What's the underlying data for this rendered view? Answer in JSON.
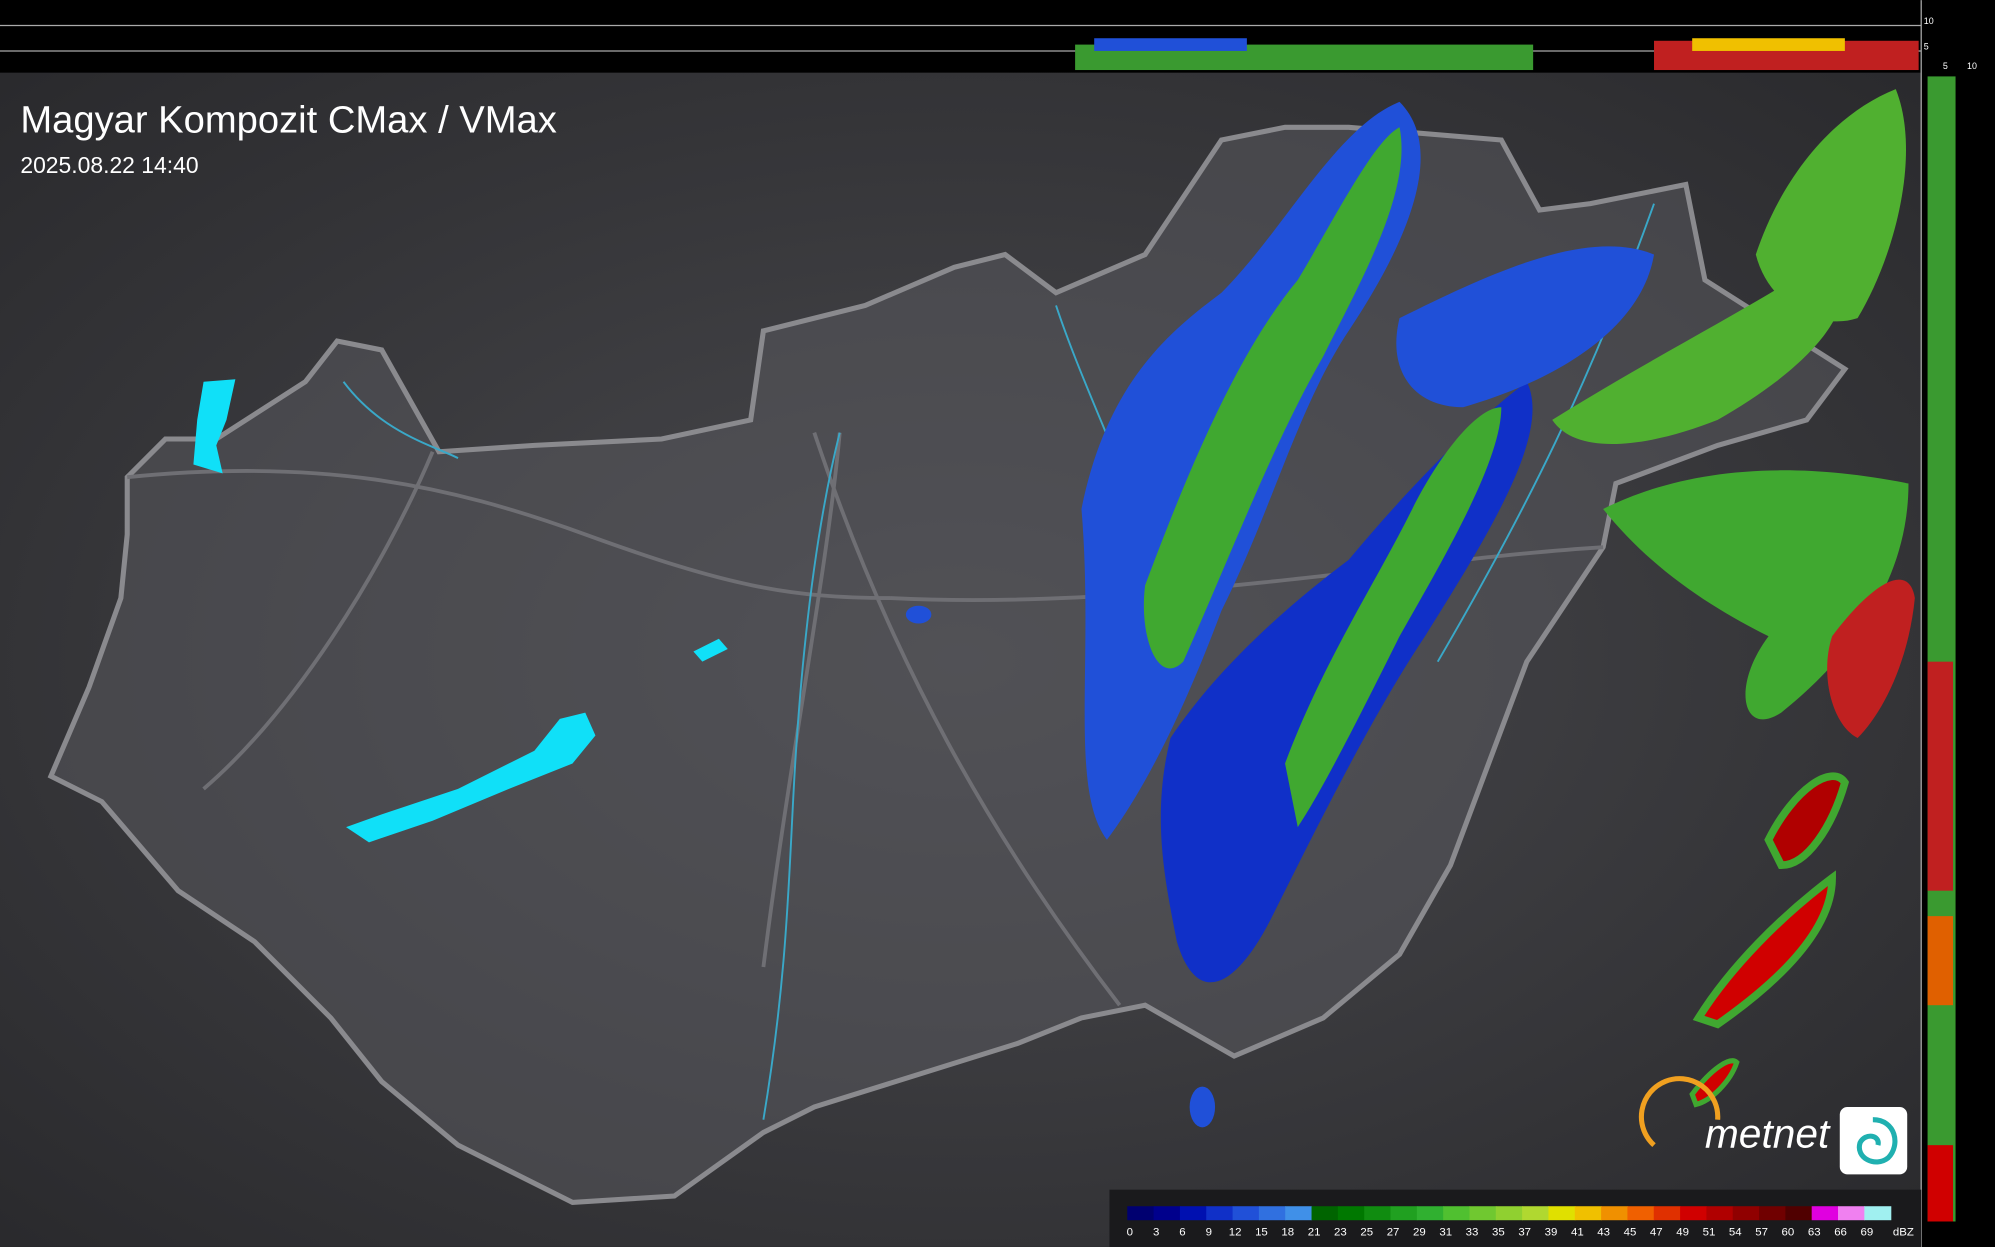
{
  "header": {
    "title": "Magyar Kompozit CMax / VMax",
    "timestamp": "2025.08.22 14:40"
  },
  "top_profile": {
    "scale_labels": [
      "10",
      "5"
    ]
  },
  "side_profile": {
    "scale_labels": [
      "5",
      "10"
    ]
  },
  "legend": {
    "unit": "dBZ",
    "ticks": [
      0,
      3,
      6,
      9,
      12,
      15,
      18,
      21,
      23,
      25,
      27,
      29,
      31,
      33,
      35,
      37,
      39,
      41,
      43,
      45,
      47,
      49,
      51,
      54,
      57,
      60,
      63,
      66,
      69
    ],
    "colors": [
      "#000070",
      "#00008c",
      "#0010b0",
      "#1030c8",
      "#2050d8",
      "#3070e0",
      "#4090e8",
      "#006400",
      "#007800",
      "#108c10",
      "#20a020",
      "#30b030",
      "#50c030",
      "#70c830",
      "#90d030",
      "#b0d830",
      "#e0e000",
      "#f0c000",
      "#f09000",
      "#f06000",
      "#e03000",
      "#d00000",
      "#b00000",
      "#900000",
      "#700000",
      "#500000",
      "#e000e0",
      "#f080f0",
      "#a0f0f0"
    ]
  },
  "logo": {
    "text": "metnet"
  }
}
